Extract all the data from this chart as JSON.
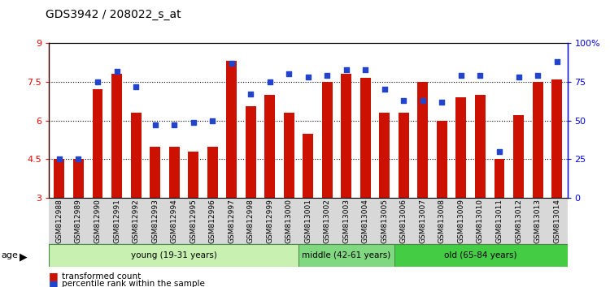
{
  "title": "GDS3942 / 208022_s_at",
  "samples": [
    "GSM812988",
    "GSM812989",
    "GSM812990",
    "GSM812991",
    "GSM812992",
    "GSM812993",
    "GSM812994",
    "GSM812995",
    "GSM812996",
    "GSM812997",
    "GSM812998",
    "GSM812999",
    "GSM813000",
    "GSM813001",
    "GSM813002",
    "GSM813003",
    "GSM813004",
    "GSM813005",
    "GSM813006",
    "GSM813007",
    "GSM813008",
    "GSM813009",
    "GSM813010",
    "GSM813011",
    "GSM813012",
    "GSM813013",
    "GSM813014"
  ],
  "bar_values": [
    4.5,
    4.5,
    7.2,
    7.8,
    6.3,
    5.0,
    5.0,
    4.8,
    5.0,
    8.3,
    6.55,
    7.0,
    6.3,
    5.5,
    7.5,
    7.8,
    7.65,
    6.3,
    6.3,
    7.5,
    6.0,
    6.9,
    7.0,
    4.5,
    6.2,
    7.5,
    7.6
  ],
  "dot_values_pct": [
    25,
    25,
    75,
    82,
    72,
    47,
    47,
    49,
    50,
    87,
    67,
    75,
    80,
    78,
    79,
    83,
    83,
    70,
    63,
    63,
    62,
    79,
    79,
    30,
    78,
    79,
    88
  ],
  "groups": [
    {
      "label": "young (19-31 years)",
      "start": 0,
      "end": 13,
      "color": "#c8f0b0"
    },
    {
      "label": "middle (42-61 years)",
      "start": 13,
      "end": 18,
      "color": "#80d880"
    },
    {
      "label": "old (65-84 years)",
      "start": 18,
      "end": 27,
      "color": "#44cc44"
    }
  ],
  "ylim_left": [
    3,
    9
  ],
  "ylim_right": [
    0,
    100
  ],
  "yticks_left": [
    3,
    4.5,
    6.0,
    7.5,
    9
  ],
  "ytick_labels_left": [
    "3",
    "4.5",
    "6",
    "7.5",
    "9"
  ],
  "yticks_right": [
    0,
    25,
    50,
    75,
    100
  ],
  "ytick_labels_right": [
    "0",
    "25",
    "50",
    "75",
    "100%"
  ],
  "bar_color": "#cc1100",
  "dot_color": "#2244cc",
  "tick_bg": "#d8d8d8"
}
